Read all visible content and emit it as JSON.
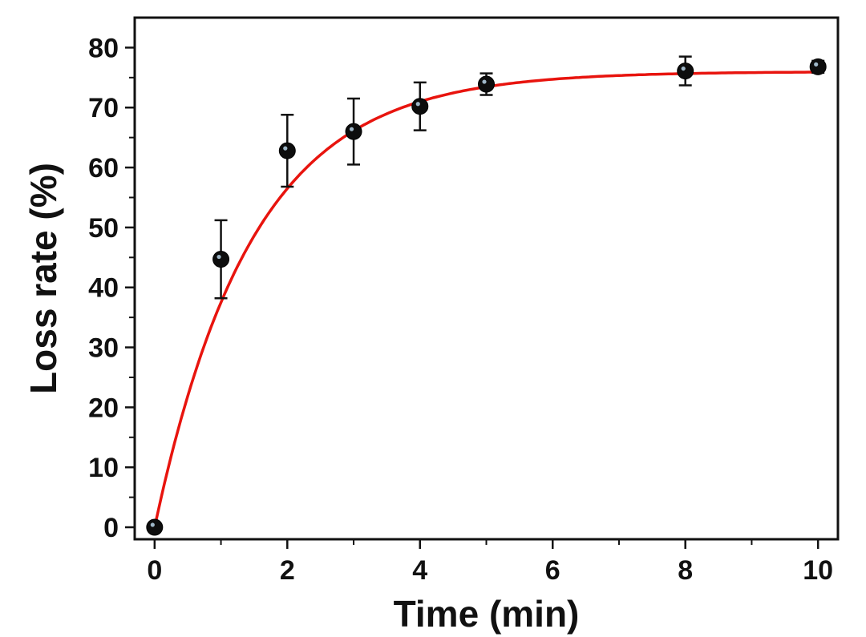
{
  "chart_data": {
    "type": "scatter",
    "title": "",
    "xlabel": "Time (min)",
    "ylabel": "Loss rate (%)",
    "xlim": [
      -0.3,
      10.3
    ],
    "ylim": [
      -2,
      85
    ],
    "xticks": [
      0,
      2,
      4,
      6,
      8,
      10
    ],
    "yticks": [
      0,
      10,
      20,
      30,
      40,
      50,
      60,
      70,
      80
    ],
    "grid": false,
    "series": [
      {
        "kind": "points_with_error_bars",
        "x": [
          0,
          1,
          2,
          3,
          4,
          5,
          8,
          10
        ],
        "y": [
          0,
          44.7,
          62.8,
          66.0,
          70.2,
          73.9,
          76.1,
          76.8
        ],
        "yerr": [
          0,
          6.5,
          6.0,
          5.5,
          4.0,
          1.8,
          2.4,
          1.0
        ],
        "color": "#111111"
      },
      {
        "kind": "fit_curve",
        "model": "y = A*(1 - exp(-k*x))",
        "A": 76,
        "k": 0.68,
        "color": "#e8140e"
      }
    ]
  }
}
